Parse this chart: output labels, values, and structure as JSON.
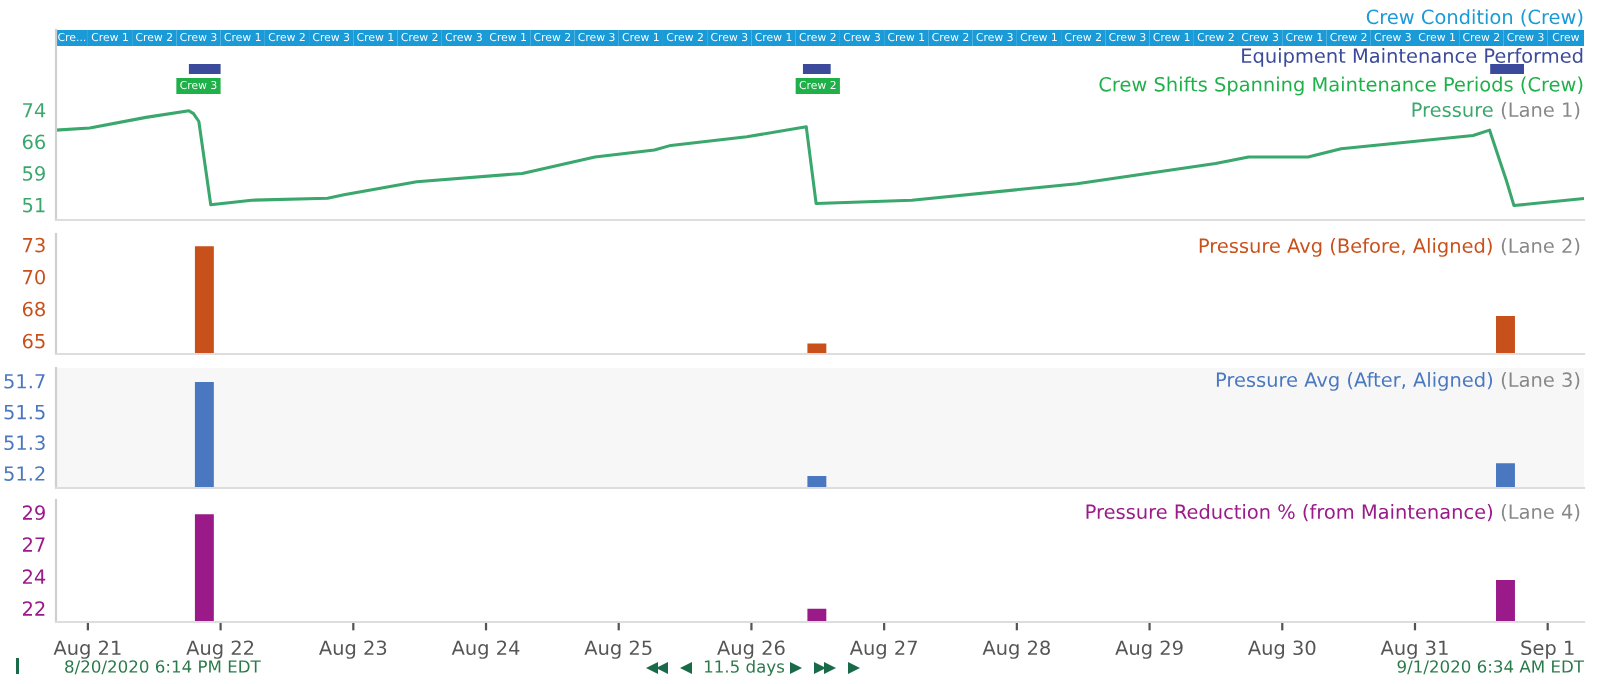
{
  "chart_data": [
    {
      "type": "line",
      "title": "Pressure",
      "subtitle": "(Lane 1)",
      "xlim": [
        "2020-08-20T18:14",
        "2020-09-01T06:34"
      ],
      "ylim": [
        47.3,
        93.4
      ],
      "yticks": [
        {
          "value": 51,
          "label": "51"
        },
        {
          "value": 58.67,
          "label": "59"
        },
        {
          "value": 66.33,
          "label": "66"
        },
        {
          "value": 74,
          "label": "74"
        }
      ],
      "tick_labels": "y",
      "annotations": [
        "Crew Condition (Crew)",
        "Equipment Maintenance Performed",
        "Crew Shifts Spanning Maintenance Periods (Crew)"
      ],
      "bands": [
        {
          "axis": "x",
          "color": "#1a9ad6",
          "from": "2020-08-20T18:14",
          "to": "2020-08-21T00:00",
          "label": "Cre..."
        },
        {
          "axis": "x",
          "color": "#1a9ad6",
          "from": "2020-08-21T00:00",
          "to": "2020-08-21T08:00",
          "label": "Crew 1"
        },
        {
          "axis": "x",
          "color": "#1a9ad6",
          "from": "2020-08-21T08:00",
          "to": "2020-08-21T16:00",
          "label": "Crew 2"
        },
        {
          "axis": "x",
          "color": "#1a9ad6",
          "from": "2020-08-21T16:00",
          "to": "2020-08-22T00:00",
          "label": "Crew 3"
        },
        {
          "axis": "x",
          "color": "#1a9ad6",
          "from": "2020-08-22T00:00",
          "to": "2020-08-22T08:00",
          "label": "Crew 1"
        },
        {
          "axis": "x",
          "color": "#1a9ad6",
          "from": "2020-08-22T08:00",
          "to": "2020-08-22T16:00",
          "label": "Crew 2"
        },
        {
          "axis": "x",
          "color": "#1a9ad6",
          "from": "2020-08-22T16:00",
          "to": "2020-08-23T00:00",
          "label": "Crew 3"
        },
        {
          "axis": "x",
          "color": "#1a9ad6",
          "from": "2020-08-23T00:00",
          "to": "2020-08-23T08:00",
          "label": "Crew 1"
        },
        {
          "axis": "x",
          "color": "#1a9ad6",
          "from": "2020-08-23T08:00",
          "to": "2020-08-23T16:00",
          "label": "Crew 2"
        },
        {
          "axis": "x",
          "color": "#1a9ad6",
          "from": "2020-08-23T16:00",
          "to": "2020-08-24T00:00",
          "label": "Crew 3"
        },
        {
          "axis": "x",
          "color": "#1a9ad6",
          "from": "2020-08-24T00:00",
          "to": "2020-08-24T08:00",
          "label": "Crew 1"
        },
        {
          "axis": "x",
          "color": "#1a9ad6",
          "from": "2020-08-24T08:00",
          "to": "2020-08-24T16:00",
          "label": "Crew 2"
        },
        {
          "axis": "x",
          "color": "#1a9ad6",
          "from": "2020-08-24T16:00",
          "to": "2020-08-25T00:00",
          "label": "Crew 3"
        },
        {
          "axis": "x",
          "color": "#1a9ad6",
          "from": "2020-08-25T00:00",
          "to": "2020-08-25T08:00",
          "label": "Crew 1"
        },
        {
          "axis": "x",
          "color": "#1a9ad6",
          "from": "2020-08-25T08:00",
          "to": "2020-08-25T16:00",
          "label": "Crew 2"
        },
        {
          "axis": "x",
          "color": "#1a9ad6",
          "from": "2020-08-25T16:00",
          "to": "2020-08-26T00:00",
          "label": "Crew 3"
        },
        {
          "axis": "x",
          "color": "#1a9ad6",
          "from": "2020-08-26T00:00",
          "to": "2020-08-26T08:00",
          "label": "Crew 1"
        },
        {
          "axis": "x",
          "color": "#1a9ad6",
          "from": "2020-08-26T08:00",
          "to": "2020-08-26T16:00",
          "label": "Crew 2"
        },
        {
          "axis": "x",
          "color": "#1a9ad6",
          "from": "2020-08-26T16:00",
          "to": "2020-08-27T00:00",
          "label": "Crew 3"
        },
        {
          "axis": "x",
          "color": "#1a9ad6",
          "from": "2020-08-27T00:00",
          "to": "2020-08-27T08:00",
          "label": "Crew 1"
        },
        {
          "axis": "x",
          "color": "#1a9ad6",
          "from": "2020-08-27T08:00",
          "to": "2020-08-27T16:00",
          "label": "Crew 2"
        },
        {
          "axis": "x",
          "color": "#1a9ad6",
          "from": "2020-08-27T16:00",
          "to": "2020-08-28T00:00",
          "label": "Crew 3"
        },
        {
          "axis": "x",
          "color": "#1a9ad6",
          "from": "2020-08-28T00:00",
          "to": "2020-08-28T08:00",
          "label": "Crew 1"
        },
        {
          "axis": "x",
          "color": "#1a9ad6",
          "from": "2020-08-28T08:00",
          "to": "2020-08-28T16:00",
          "label": "Crew 2"
        },
        {
          "axis": "x",
          "color": "#1a9ad6",
          "from": "2020-08-28T16:00",
          "to": "2020-08-29T00:00",
          "label": "Crew 3"
        },
        {
          "axis": "x",
          "color": "#1a9ad6",
          "from": "2020-08-29T00:00",
          "to": "2020-08-29T08:00",
          "label": "Crew 1"
        },
        {
          "axis": "x",
          "color": "#1a9ad6",
          "from": "2020-08-29T08:00",
          "to": "2020-08-29T16:00",
          "label": "Crew 2"
        },
        {
          "axis": "x",
          "color": "#1a9ad6",
          "from": "2020-08-29T16:00",
          "to": "2020-08-30T00:00",
          "label": "Crew 3"
        },
        {
          "axis": "x",
          "color": "#1a9ad6",
          "from": "2020-08-30T00:00",
          "to": "2020-08-30T08:00",
          "label": "Crew 1"
        },
        {
          "axis": "x",
          "color": "#1a9ad6",
          "from": "2020-08-30T08:00",
          "to": "2020-08-30T16:00",
          "label": "Crew 2"
        },
        {
          "axis": "x",
          "color": "#1a9ad6",
          "from": "2020-08-30T16:00",
          "to": "2020-08-31T00:00",
          "label": "Crew 3"
        },
        {
          "axis": "x",
          "color": "#1a9ad6",
          "from": "2020-08-31T00:00",
          "to": "2020-08-31T08:00",
          "label": "Crew 1"
        },
        {
          "axis": "x",
          "color": "#1a9ad6",
          "from": "2020-08-31T08:00",
          "to": "2020-08-31T16:00",
          "label": "Crew 2"
        },
        {
          "axis": "x",
          "color": "#1a9ad6",
          "from": "2020-08-31T16:00",
          "to": "2020-09-01T00:00",
          "label": "Crew 3"
        },
        {
          "axis": "x",
          "color": "#1a9ad6",
          "from": "2020-09-01T00:00",
          "to": "2020-09-01T06:34",
          "label": "Crew"
        },
        {
          "axis": "x",
          "color": "#3b4a9a",
          "from": "2020-08-21T18:16",
          "to": "2020-08-22T00:00"
        },
        {
          "axis": "x",
          "color": "#3b4a9a",
          "from": "2020-08-26T09:19",
          "to": "2020-08-26T14:20"
        },
        {
          "axis": "x",
          "color": "#3b4a9a",
          "from": "2020-08-31T13:36",
          "to": "2020-08-31T19:43"
        },
        {
          "axis": "x",
          "color": "#1fb04a",
          "from": "2020-08-21T16:00",
          "to": "2020-08-22T00:00",
          "label": "Crew 3"
        },
        {
          "axis": "x",
          "color": "#1fb04a",
          "from": "2020-08-26T08:00",
          "to": "2020-08-26T16:00",
          "label": "Crew 2"
        }
      ],
      "series": [
        {
          "color": "#3aa76d",
          "x": [
            "2020-08-20T18:14",
            "2020-08-21T00:20",
            "2020-08-21T10:30",
            "2020-08-21T18:16",
            "2020-08-21T19:06",
            "2020-08-21T20:04",
            "2020-08-21T22:13",
            "2020-08-22T05:37",
            "2020-08-22T19:20",
            "2020-08-22T22:19",
            "2020-08-23T11:28",
            "2020-08-24T06:33",
            "2020-08-24T19:42",
            "2020-08-25T06:27",
            "2020-08-25T09:25",
            "2020-08-25T23:10",
            "2020-08-26T09:55",
            "2020-08-26T11:42",
            "2020-08-27T05:00",
            "2020-08-28T10:52",
            "2020-08-29T11:56",
            "2020-08-29T17:55",
            "2020-08-30T04:40",
            "2020-08-30T10:38",
            "2020-08-31T10:30",
            "2020-08-31T13:30",
            "2020-08-31T15:18",
            "2020-08-31T16:30",
            "2020-08-31T17:54",
            "2020-09-01T06:34"
          ],
          "values": [
            69.1,
            69.6,
            72.2,
            73.8,
            73.1,
            71.2,
            51.0,
            52.1,
            52.6,
            53.4,
            56.6,
            58.6,
            62.6,
            64.3,
            65.4,
            67.5,
            69.9,
            51.3,
            52.1,
            56.1,
            61.0,
            62.6,
            62.6,
            64.6,
            67.8,
            69.1,
            61.8,
            57.0,
            50.8,
            52.5
          ]
        }
      ]
    },
    {
      "type": "bar",
      "title": "Pressure Avg (Before, Aligned)",
      "subtitle": "(Lane 2)",
      "xlim": [
        "2020-08-20T18:14",
        "2020-09-01T06:34"
      ],
      "ylim": [
        63.9,
        73.9
      ],
      "yticks": [
        {
          "value": 65,
          "label": "65"
        },
        {
          "value": 67.67,
          "label": "68"
        },
        {
          "value": 70.33,
          "label": "70"
        },
        {
          "value": 73,
          "label": "73"
        }
      ],
      "tick_labels": "y",
      "series": [
        {
          "color": "#c8501a",
          "x": [
            "2020-08-21T21:04",
            "2020-08-26T11:50",
            "2020-08-31T16:22"
          ],
          "values": [
            72.8,
            64.7,
            67.0
          ]
        }
      ]
    },
    {
      "type": "bar",
      "title": "Pressure Avg (After, Aligned)",
      "subtitle": "(Lane 3)",
      "xlim": [
        "2020-08-20T18:14",
        "2020-09-01T06:34"
      ],
      "ylim": [
        51.1,
        51.75
      ],
      "yticks": [
        {
          "value": 51.18,
          "label": "51.2"
        },
        {
          "value": 51.347,
          "label": "51.3"
        },
        {
          "value": 51.513,
          "label": "51.5"
        },
        {
          "value": 51.68,
          "label": "51.7"
        }
      ],
      "tick_labels": "y",
      "series": [
        {
          "color": "#4a78c0",
          "x": [
            "2020-08-21T21:04",
            "2020-08-26T11:50",
            "2020-08-31T16:22"
          ],
          "values": [
            51.67,
            51.16,
            51.23
          ]
        }
      ]
    },
    {
      "type": "bar",
      "title": "Pressure Reduction % (from Maintenance)",
      "subtitle": "(Lane 4)",
      "xlim": [
        "2020-08-20T18:14",
        "2020-09-01T06:34"
      ],
      "ylim": [
        21.0,
        29.9
      ],
      "yticks": [
        {
          "value": 22,
          "label": "22"
        },
        {
          "value": 24.33,
          "label": "24"
        },
        {
          "value": 26.67,
          "label": "27"
        },
        {
          "value": 29,
          "label": "29"
        }
      ],
      "xticks": [
        {
          "value": "2020-08-21",
          "label": "Aug 21"
        },
        {
          "value": "2020-08-22",
          "label": "Aug 22"
        },
        {
          "value": "2020-08-23",
          "label": "Aug 23"
        },
        {
          "value": "2020-08-24",
          "label": "Aug 24"
        },
        {
          "value": "2020-08-25",
          "label": "Aug 25"
        },
        {
          "value": "2020-08-26",
          "label": "Aug 26"
        },
        {
          "value": "2020-08-27",
          "label": "Aug 27"
        },
        {
          "value": "2020-08-28",
          "label": "Aug 28"
        },
        {
          "value": "2020-08-29",
          "label": "Aug 29"
        },
        {
          "value": "2020-08-30",
          "label": "Aug 30"
        },
        {
          "value": "2020-08-31",
          "label": "Aug 31"
        },
        {
          "value": "2020-09-01",
          "label": "Sep 1"
        }
      ],
      "annotations": [
        "8/20/2020 6:14 PM EDT",
        "11.5 days",
        "9/1/2020 6:34 AM EDT"
      ],
      "series": [
        {
          "color": "#9a1a8a",
          "x": [
            "2020-08-21T21:04",
            "2020-08-26T11:50",
            "2020-08-31T16:22"
          ],
          "values": [
            28.8,
            21.9,
            24.0
          ]
        }
      ]
    }
  ]
}
